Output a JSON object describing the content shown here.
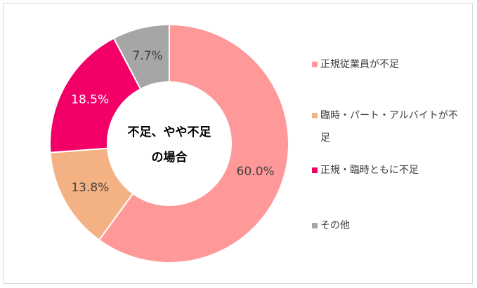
{
  "chart_data": {
    "type": "donut",
    "center_text": [
      "不足、やや不足",
      "の場合"
    ],
    "categories": [
      "正規従業員が不足",
      "臨時・パート・アルバイトが不足",
      "正規・臨時ともに不足",
      "その他"
    ],
    "values": [
      60.0,
      13.8,
      18.5,
      7.7
    ],
    "value_labels": [
      "60.0%",
      "13.8%",
      "18.5%",
      "7.7%"
    ],
    "colors": [
      "#ff9999",
      "#f4b183",
      "#f20068",
      "#a6a6a6"
    ],
    "legend": "right"
  }
}
